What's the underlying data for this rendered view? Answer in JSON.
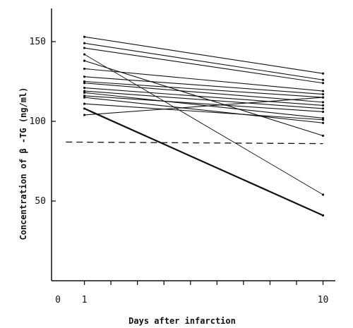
{
  "chart_data": {
    "type": "line",
    "xlabel": "Days after infarction",
    "ylabel": "Concentration of β -TG (ng/ml)",
    "xlim": [
      0,
      10.5
    ],
    "ylim": [
      0,
      172
    ],
    "x_ticks": [
      0,
      1,
      10
    ],
    "y_ticks": [
      50,
      100,
      150
    ],
    "x_tick_labels": [
      "0",
      "1",
      "10"
    ],
    "y_tick_labels": [
      "50",
      "100",
      "150"
    ],
    "grid": false,
    "reference_line": {
      "style": "dashed",
      "x": [
        0.3,
        10
      ],
      "y": [
        87,
        86
      ]
    },
    "series": [
      {
        "x": [
          1,
          10
        ],
        "y": [
          153,
          130
        ]
      },
      {
        "x": [
          1,
          10
        ],
        "y": [
          149,
          126
        ]
      },
      {
        "x": [
          1,
          10
        ],
        "y": [
          146,
          124
        ]
      },
      {
        "x": [
          1,
          10
        ],
        "y": [
          142,
          54
        ]
      },
      {
        "x": [
          1,
          10
        ],
        "y": [
          138,
          91
        ]
      },
      {
        "x": [
          1,
          10
        ],
        "y": [
          133,
          119
        ]
      },
      {
        "x": [
          1,
          10
        ],
        "y": [
          128,
          117
        ]
      },
      {
        "x": [
          1,
          10
        ],
        "y": [
          125,
          115
        ]
      },
      {
        "x": [
          1,
          10
        ],
        "y": [
          124,
          112
        ]
      },
      {
        "x": [
          1,
          10
        ],
        "y": [
          121,
          110
        ]
      },
      {
        "x": [
          1,
          10
        ],
        "y": [
          119,
          108
        ]
      },
      {
        "x": [
          1,
          10
        ],
        "y": [
          118,
          102
        ]
      },
      {
        "x": [
          1,
          10
        ],
        "y": [
          116,
          106
        ]
      },
      {
        "x": [
          1,
          10
        ],
        "y": [
          115,
          99
        ]
      },
      {
        "x": [
          1,
          10
        ],
        "y": [
          111,
          101
        ]
      },
      {
        "x": [
          1,
          10
        ],
        "y": [
          104,
          115
        ]
      },
      {
        "x": [
          1,
          10
        ],
        "y": [
          108,
          41
        ]
      }
    ]
  }
}
